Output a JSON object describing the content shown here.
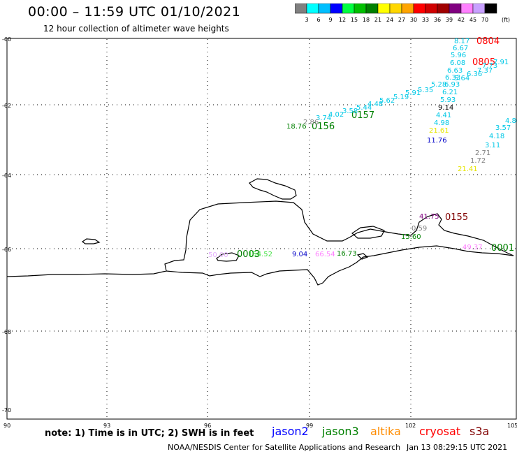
{
  "header": {
    "title": "00:00 – 11:59 UTC 01/10/2021",
    "subtitle": "12 hour collection of altimeter wave heights"
  },
  "colorbar": {
    "unit": "(ft)",
    "ticks": [
      "3",
      "6",
      "9",
      "12",
      "15",
      "18",
      "21",
      "24",
      "27",
      "30",
      "33",
      "36",
      "39",
      "42",
      "45",
      "70"
    ],
    "colors": [
      "#808080",
      "#00ffff",
      "#00bfff",
      "#0000ff",
      "#00ff40",
      "#00c000",
      "#008000",
      "#ffff00",
      "#ffd700",
      "#ffa500",
      "#ff0000",
      "#d00000",
      "#a00000",
      "#800080",
      "#ff80ff",
      "#c8a0ff",
      "#000000"
    ]
  },
  "axes": {
    "x_ticks": [
      "90",
      "93",
      "96",
      "99",
      "102",
      "105"
    ],
    "y_ticks": [
      "-60",
      "-62",
      "-64",
      "-66",
      "-68",
      "-70"
    ]
  },
  "track_labels": [
    {
      "text": "0804",
      "color": "#ff0000"
    },
    {
      "text": "0805",
      "color": "#ff0000"
    },
    {
      "text": "0157",
      "color": "#008000"
    },
    {
      "text": "0156",
      "color": "#008000"
    },
    {
      "text": "0155",
      "color": "#800000"
    },
    {
      "text": "0003",
      "color": "#008000"
    },
    {
      "text": "0001",
      "color": "#008000"
    }
  ],
  "wave_values": [
    {
      "text": "8.17",
      "color": "#00c8e6"
    },
    {
      "text": "6.67",
      "color": "#00c8e6"
    },
    {
      "text": "5.96",
      "color": "#00c8e6"
    },
    {
      "text": "6.08",
      "color": "#00c8e6"
    },
    {
      "text": "6.63",
      "color": "#00c8e6"
    },
    {
      "text": "6.33",
      "color": "#00c8e6"
    },
    {
      "text": "6.93",
      "color": "#00c8e6"
    },
    {
      "text": "6.21",
      "color": "#00c8e6"
    },
    {
      "text": "5.93",
      "color": "#00c8e6"
    },
    {
      "text": "9.14",
      "color": "#000000"
    },
    {
      "text": "4.41",
      "color": "#00c8e6"
    },
    {
      "text": "4.98",
      "color": "#00c8e6"
    },
    {
      "text": "21.61",
      "color": "#e6e600"
    },
    {
      "text": "11.76",
      "color": "#0000c8"
    },
    {
      "text": "7.91",
      "color": "#00c8e6"
    },
    {
      "text": "7.73",
      "color": "#00c8e6"
    },
    {
      "text": "7.37",
      "color": "#00c8e6"
    },
    {
      "text": "6.36",
      "color": "#00c8e6"
    },
    {
      "text": "5.64",
      "color": "#00c8e6"
    },
    {
      "text": "5.28",
      "color": "#00c8e6"
    },
    {
      "text": "5.35",
      "color": "#00c8e6"
    },
    {
      "text": "5.91",
      "color": "#00c8e6"
    },
    {
      "text": "5.19",
      "color": "#00c8e6"
    },
    {
      "text": "5.62",
      "color": "#00c8e6"
    },
    {
      "text": "4.48",
      "color": "#00c8e6"
    },
    {
      "text": "5.44",
      "color": "#00c8e6"
    },
    {
      "text": "3.58",
      "color": "#00c8e6"
    },
    {
      "text": "4.02",
      "color": "#00c8e6"
    },
    {
      "text": "3.74",
      "color": "#00c8e6"
    },
    {
      "text": "2.86",
      "color": "#808080"
    },
    {
      "text": "18.76",
      "color": "#008000"
    },
    {
      "text": "4.86",
      "color": "#00c8e6"
    },
    {
      "text": "3.57",
      "color": "#00c8e6"
    },
    {
      "text": "4.18",
      "color": "#00c8e6"
    },
    {
      "text": "3.11",
      "color": "#00c8e6"
    },
    {
      "text": "2.71",
      "color": "#808080"
    },
    {
      "text": "1.72",
      "color": "#808080"
    },
    {
      "text": "21.41",
      "color": "#e6e600"
    },
    {
      "text": "41.75",
      "color": "#800080"
    },
    {
      "text": "0.59",
      "color": "#808080"
    },
    {
      "text": "15.60",
      "color": "#008000"
    },
    {
      "text": "154.52",
      "color": "#40e040"
    },
    {
      "text": "9.04",
      "color": "#0000c8"
    },
    {
      "text": "66.54",
      "color": "#ff80ff"
    },
    {
      "text": "16.73",
      "color": "#008000"
    },
    {
      "text": "49.37",
      "color": "#ff80ff"
    },
    {
      "text": "50.00",
      "color": "#e6b0ff"
    }
  ],
  "footer": {
    "note": "note: 1) Time is in UTC; 2) SWH is in feet",
    "satellites": [
      {
        "name": "jason2",
        "color": "#0000ff"
      },
      {
        "name": "jason3",
        "color": "#008000"
      },
      {
        "name": "altika",
        "color": "#ff8c00"
      },
      {
        "name": "cryosat",
        "color": "#ff0000"
      },
      {
        "name": "s3a",
        "color": "#800000"
      }
    ],
    "credit": "NOAA/NESDIS Center for Satellite Applications and Research",
    "timestamp": "Jan 13 08:29:15 UTC 2021"
  }
}
